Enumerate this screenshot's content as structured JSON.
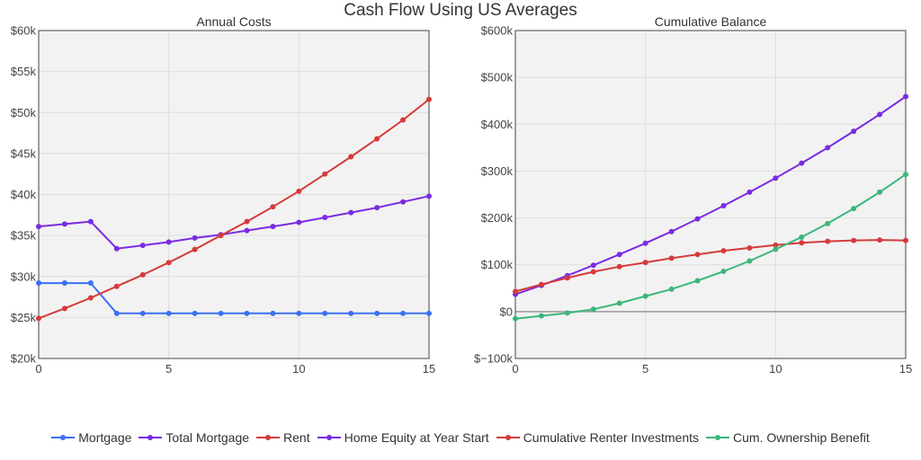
{
  "title": "Cash Flow Using US Averages",
  "colors": {
    "blue": "#3b6ff5",
    "purple": "#7a2be2",
    "red": "#d63a3a",
    "green": "#3cb67a",
    "plot_bg": "#f2f2f2",
    "grid": "#dddddd",
    "zero_line": "#999999"
  },
  "chart_data": [
    {
      "type": "line",
      "title": "Annual Costs",
      "xlabel": "",
      "ylabel": "",
      "xlim": [
        0,
        15
      ],
      "ylim": [
        20000,
        60000
      ],
      "x_ticks": [
        0,
        5,
        10,
        15
      ],
      "y_ticks": [
        20000,
        25000,
        30000,
        35000,
        40000,
        45000,
        50000,
        55000,
        60000
      ],
      "y_tick_labels": [
        "$20k",
        "$25k",
        "$30k",
        "$35k",
        "$40k",
        "$45k",
        "$50k",
        "$55k",
        "$60k"
      ],
      "grid": true,
      "x": [
        0,
        1,
        2,
        3,
        4,
        5,
        6,
        7,
        8,
        9,
        10,
        11,
        12,
        13,
        14,
        15
      ],
      "series": [
        {
          "name": "Mortgage",
          "color": "blue",
          "values": [
            29200,
            29200,
            29200,
            25500,
            25500,
            25500,
            25500,
            25500,
            25500,
            25500,
            25500,
            25500,
            25500,
            25500,
            25500,
            25500
          ]
        },
        {
          "name": "Total Mortgage",
          "color": "purple",
          "values": [
            36100,
            36400,
            36700,
            33400,
            33800,
            34200,
            34700,
            35100,
            35600,
            36100,
            36600,
            37200,
            37800,
            38400,
            39100,
            39800
          ]
        },
        {
          "name": "Rent",
          "color": "red",
          "values": [
            24900,
            26100,
            27400,
            28800,
            30200,
            31700,
            33300,
            35000,
            36700,
            38500,
            40400,
            42500,
            44600,
            46800,
            49100,
            51600
          ]
        }
      ]
    },
    {
      "type": "line",
      "title": "Cumulative Balance",
      "xlabel": "",
      "ylabel": "",
      "xlim": [
        0,
        15
      ],
      "ylim": [
        -100000,
        600000
      ],
      "x_ticks": [
        0,
        5,
        10,
        15
      ],
      "y_ticks": [
        -100000,
        0,
        100000,
        200000,
        300000,
        400000,
        500000,
        600000
      ],
      "y_tick_labels": [
        "$−100k",
        "$0",
        "$100k",
        "$200k",
        "$300k",
        "$400k",
        "$500k",
        "$600k"
      ],
      "grid": true,
      "x": [
        0,
        1,
        2,
        3,
        4,
        5,
        6,
        7,
        8,
        9,
        10,
        11,
        12,
        13,
        14,
        15
      ],
      "series": [
        {
          "name": "Home Equity at Year Start",
          "color": "purple",
          "values": [
            37000,
            56000,
            77000,
            99000,
            122000,
            146000,
            171000,
            198000,
            226000,
            255000,
            285000,
            317000,
            350000,
            385000,
            421000,
            459000
          ]
        },
        {
          "name": "Cumulative Renter Investments",
          "color": "red",
          "values": [
            43000,
            58000,
            72000,
            85000,
            96000,
            105000,
            114000,
            122000,
            130000,
            136000,
            142000,
            147000,
            150000,
            152000,
            153000,
            152000
          ]
        },
        {
          "name": "Cum. Ownership Benefit",
          "color": "green",
          "values": [
            -15000,
            -9000,
            -3000,
            5000,
            18000,
            33000,
            48000,
            66000,
            86000,
            108000,
            133000,
            159000,
            188000,
            220000,
            255000,
            293000
          ]
        }
      ]
    }
  ],
  "legend": [
    {
      "label": "Mortgage",
      "color": "blue"
    },
    {
      "label": "Total Mortgage",
      "color": "purple"
    },
    {
      "label": "Rent",
      "color": "red"
    },
    {
      "label": "Home Equity at Year Start",
      "color": "purple"
    },
    {
      "label": "Cumulative Renter Investments",
      "color": "red"
    },
    {
      "label": "Cum. Ownership Benefit",
      "color": "green"
    }
  ]
}
